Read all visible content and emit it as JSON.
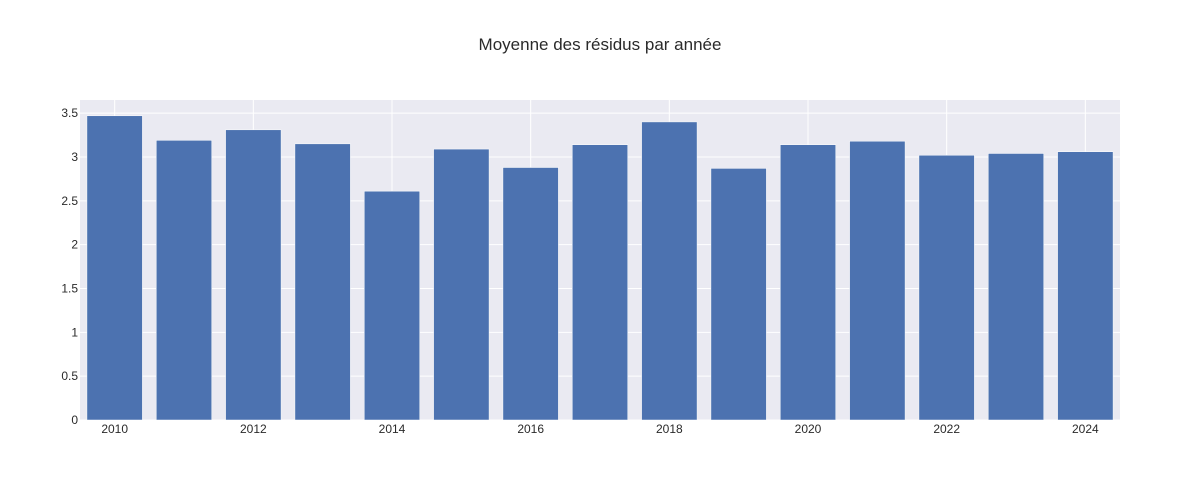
{
  "chart_data": {
    "type": "bar",
    "title": "Moyenne des résidus par année",
    "xlabel": "",
    "ylabel": "",
    "categories": [
      2010,
      2011,
      2012,
      2013,
      2014,
      2015,
      2016,
      2017,
      2018,
      2019,
      2020,
      2021,
      2022,
      2023,
      2024
    ],
    "values": [
      3.47,
      3.19,
      3.31,
      3.15,
      2.61,
      3.09,
      2.88,
      3.14,
      3.4,
      2.87,
      3.14,
      3.18,
      3.02,
      3.04,
      3.06
    ],
    "x_tick_labels": [
      "2010",
      "2012",
      "2014",
      "2016",
      "2018",
      "2020",
      "2022",
      "2024"
    ],
    "y_ticks": [
      0,
      0.5,
      1,
      1.5,
      2,
      2.5,
      3,
      3.5
    ],
    "y_tick_labels": [
      "0",
      "0.5",
      "1",
      "1.5",
      "2",
      "2.5",
      "3",
      "3.5"
    ],
    "ylim": [
      0,
      3.65
    ],
    "grid": true,
    "legend": false,
    "colors": {
      "bar": "#4c72b0",
      "plot_background": "#eaeaf2",
      "grid": "#ffffff",
      "text": "#2a2a2a"
    }
  }
}
